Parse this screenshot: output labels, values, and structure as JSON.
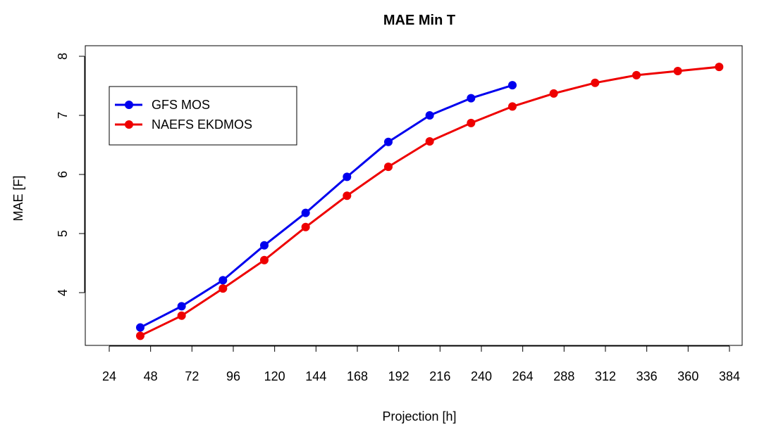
{
  "chart_data": {
    "type": "line",
    "title": "MAE Min T",
    "xlabel": "Projection [h]",
    "ylabel": "MAE [F]",
    "xlim": [
      24,
      384
    ],
    "ylim": [
      3.0,
      8.0
    ],
    "x_ticks": [
      "24",
      "48",
      "72",
      "96",
      "120",
      "144",
      "168",
      "192",
      "216",
      "240",
      "264",
      "288",
      "312",
      "336",
      "360",
      "384"
    ],
    "y_ticks": [
      "4",
      "5",
      "6",
      "7",
      "8"
    ],
    "grid": false,
    "legend_position": "top-left",
    "series": [
      {
        "name": "GFS MOS",
        "color": "#0000ee",
        "x": [
          42,
          66,
          90,
          114,
          138,
          162,
          186,
          210,
          234,
          258
        ],
        "y": [
          3.41,
          3.77,
          4.21,
          4.8,
          5.35,
          5.96,
          6.55,
          7.0,
          7.29,
          7.51
        ]
      },
      {
        "name": "NAEFS EKDMOS",
        "color": "#ee0000",
        "x": [
          42,
          66,
          90,
          114,
          138,
          162,
          186,
          210,
          234,
          258,
          282,
          306,
          330,
          354,
          378
        ],
        "y": [
          3.27,
          3.61,
          4.07,
          4.55,
          5.11,
          5.64,
          6.13,
          6.56,
          6.87,
          7.15,
          7.37,
          7.55,
          7.68,
          7.75,
          7.82
        ]
      }
    ]
  }
}
